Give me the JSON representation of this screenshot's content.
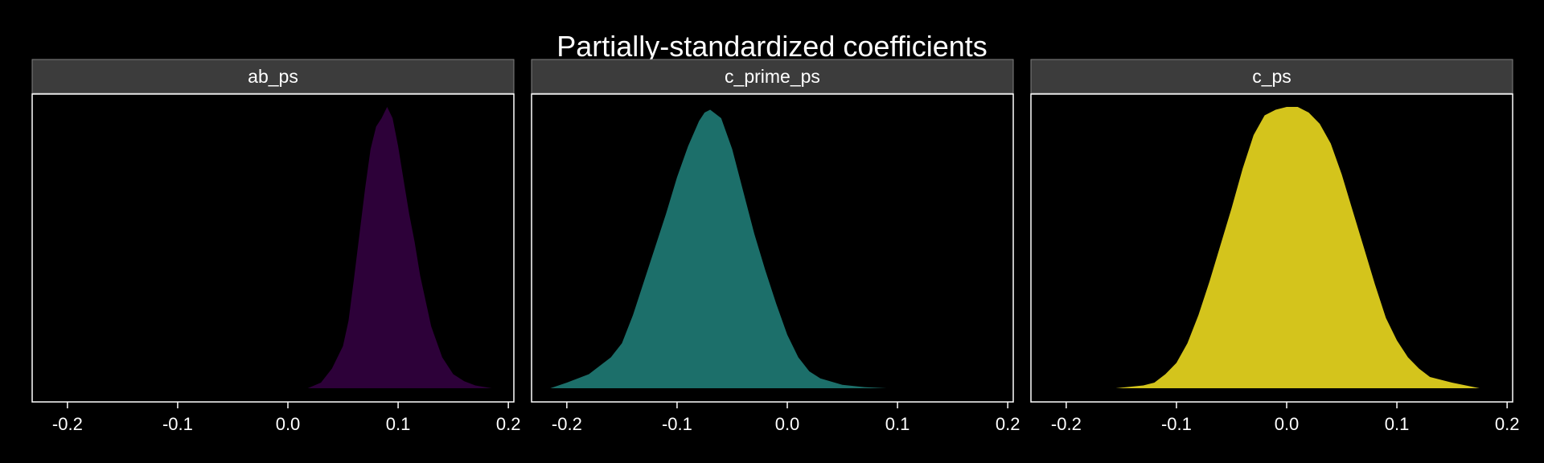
{
  "chart_data": {
    "type": "area",
    "title": "Partially-standardized coefficients",
    "xlabel": "",
    "ylabel": "",
    "xlim": [
      -0.232,
      0.205
    ],
    "x_ticks": [
      -0.2,
      -0.1,
      0.0,
      0.1,
      0.2
    ],
    "x_tick_labels": [
      "-0.2",
      "-0.1",
      "0.0",
      "0.1",
      "0.2"
    ],
    "grid": false,
    "legend": "none",
    "background": "#000000",
    "facets": [
      {
        "label": "ab_ps",
        "color": "#2d0139",
        "x": [
          0.018,
          0.03,
          0.04,
          0.05,
          0.055,
          0.06,
          0.065,
          0.07,
          0.075,
          0.08,
          0.085,
          0.09,
          0.095,
          0.1,
          0.105,
          0.11,
          0.115,
          0.12,
          0.13,
          0.14,
          0.15,
          0.16,
          0.17,
          0.185
        ],
        "density": [
          0.0,
          0.02,
          0.07,
          0.15,
          0.24,
          0.39,
          0.55,
          0.71,
          0.85,
          0.93,
          0.96,
          1.0,
          0.96,
          0.86,
          0.74,
          0.62,
          0.52,
          0.4,
          0.22,
          0.11,
          0.05,
          0.025,
          0.01,
          0.0
        ]
      },
      {
        "label": "c_prime_ps",
        "color": "#1c6f6a",
        "x": [
          -0.215,
          -0.2,
          -0.18,
          -0.16,
          -0.15,
          -0.14,
          -0.13,
          -0.12,
          -0.11,
          -0.1,
          -0.09,
          -0.08,
          -0.075,
          -0.07,
          -0.06,
          -0.05,
          -0.04,
          -0.03,
          -0.02,
          -0.01,
          0.0,
          0.01,
          0.02,
          0.03,
          0.05,
          0.07,
          0.09
        ],
        "density": [
          0.0,
          0.02,
          0.05,
          0.11,
          0.16,
          0.26,
          0.38,
          0.5,
          0.62,
          0.75,
          0.86,
          0.95,
          0.98,
          0.99,
          0.96,
          0.85,
          0.7,
          0.55,
          0.42,
          0.3,
          0.19,
          0.11,
          0.06,
          0.035,
          0.012,
          0.004,
          0.0
        ]
      },
      {
        "label": "c_ps",
        "color": "#d4c41c",
        "x": [
          -0.155,
          -0.13,
          -0.12,
          -0.11,
          -0.1,
          -0.09,
          -0.08,
          -0.07,
          -0.06,
          -0.05,
          -0.04,
          -0.03,
          -0.02,
          -0.01,
          0.0,
          0.01,
          0.02,
          0.03,
          0.04,
          0.05,
          0.06,
          0.07,
          0.08,
          0.09,
          0.1,
          0.11,
          0.12,
          0.13,
          0.15,
          0.175
        ],
        "density": [
          0.0,
          0.01,
          0.02,
          0.05,
          0.09,
          0.16,
          0.26,
          0.38,
          0.51,
          0.64,
          0.78,
          0.9,
          0.97,
          0.99,
          1.0,
          1.0,
          0.98,
          0.94,
          0.87,
          0.76,
          0.63,
          0.5,
          0.37,
          0.25,
          0.17,
          0.11,
          0.07,
          0.04,
          0.02,
          0.0
        ]
      }
    ]
  }
}
